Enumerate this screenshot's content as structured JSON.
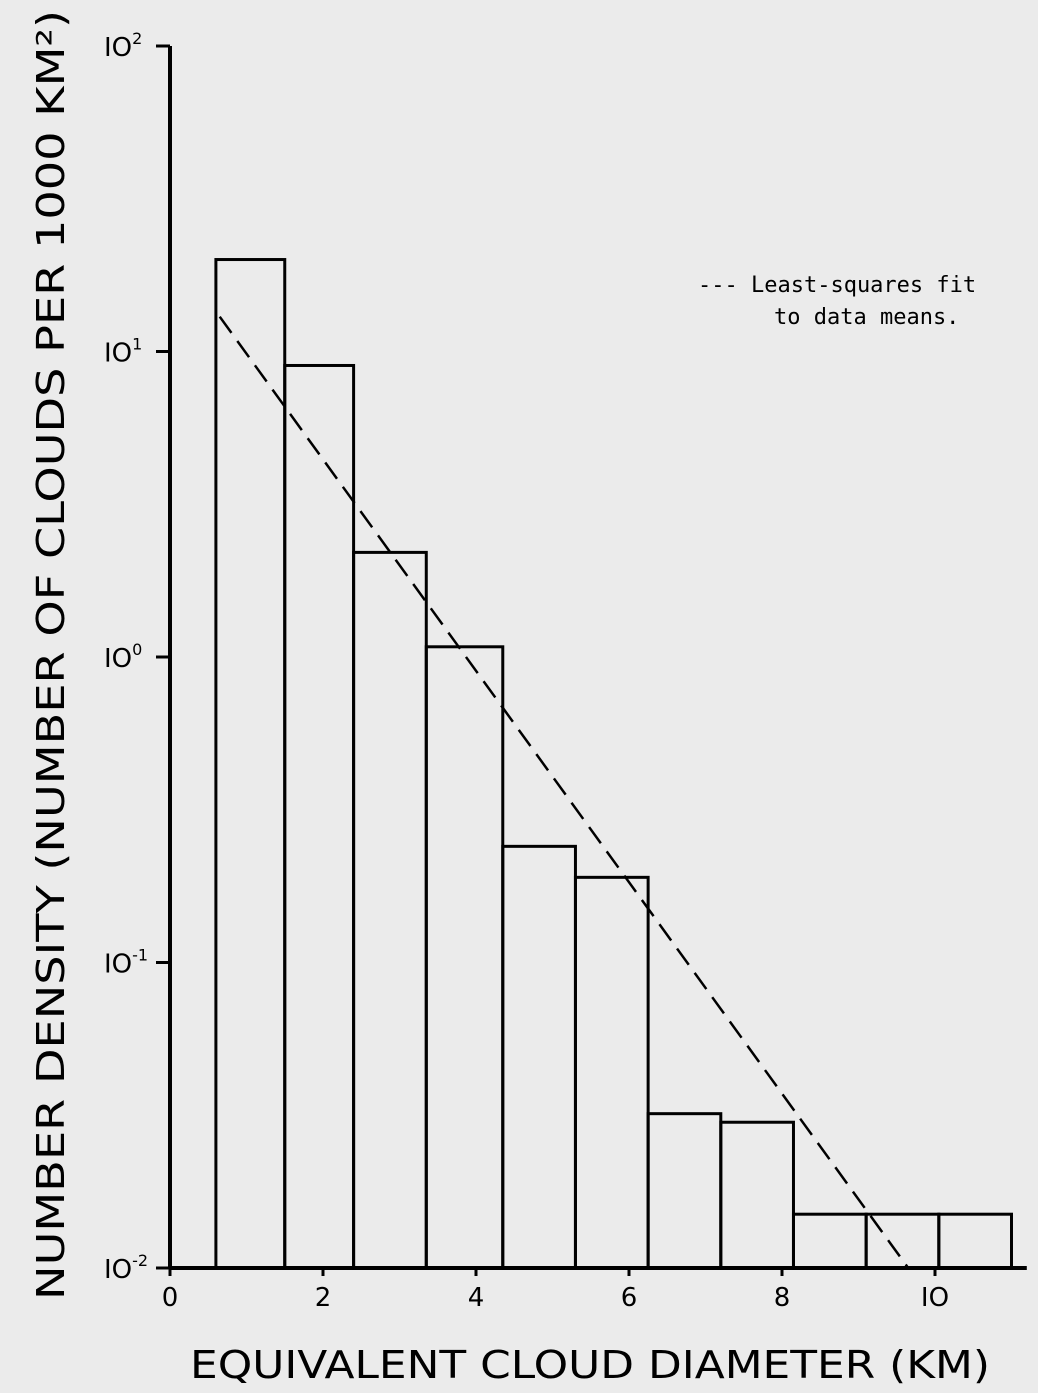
{
  "chart_data": {
    "type": "bar",
    "subtype": "histogram",
    "xlabel": "EQUIVALENT CLOUD DIAMETER (KM)",
    "ylabel": "NUMBER DENSITY (NUMBER OF CLOUDS PER 1000 KM²)",
    "y_scale": "log",
    "xlim": [
      0,
      11.2
    ],
    "ylim": [
      0.01,
      100
    ],
    "x_ticks": [
      {
        "value": 0,
        "label": "0"
      },
      {
        "value": 2,
        "label": "2"
      },
      {
        "value": 4,
        "label": "4"
      },
      {
        "value": 6,
        "label": "6"
      },
      {
        "value": 8,
        "label": "8"
      },
      {
        "value": 10,
        "label": "IO"
      }
    ],
    "y_ticks": [
      {
        "value": 100,
        "base": "IO",
        "exp": "2"
      },
      {
        "value": 10,
        "base": "IO",
        "exp": "1"
      },
      {
        "value": 1,
        "base": "IO",
        "exp": "0"
      },
      {
        "value": 0.1,
        "base": "IO",
        "exp": "-1"
      },
      {
        "value": 0.01,
        "base": "IO",
        "exp": "-2"
      }
    ],
    "bins": [
      {
        "x0": 0.6,
        "x1": 1.5,
        "value": 20
      },
      {
        "x0": 1.5,
        "x1": 2.4,
        "value": 9
      },
      {
        "x0": 2.4,
        "x1": 3.35,
        "value": 2.2
      },
      {
        "x0": 3.35,
        "x1": 4.35,
        "value": 1.08
      },
      {
        "x0": 4.35,
        "x1": 5.3,
        "value": 0.24
      },
      {
        "x0": 5.3,
        "x1": 6.25,
        "value": 0.19
      },
      {
        "x0": 6.25,
        "x1": 7.2,
        "value": 0.032
      },
      {
        "x0": 7.2,
        "x1": 8.15,
        "value": 0.03
      },
      {
        "x0": 8.15,
        "x1": 9.1,
        "value": 0.015
      },
      {
        "x0": 9.1,
        "x1": 10.05,
        "value": 0.015
      },
      {
        "x0": 10.05,
        "x1": 11.0,
        "value": 0.015
      }
    ],
    "fit_line": {
      "style": "dashed",
      "points": [
        [
          0.65,
          13
        ],
        [
          9.65,
          0.01
        ]
      ]
    },
    "legend": {
      "placement": "top-right",
      "lines": [
        "--- Least-squares fit",
        "to data means."
      ]
    }
  }
}
